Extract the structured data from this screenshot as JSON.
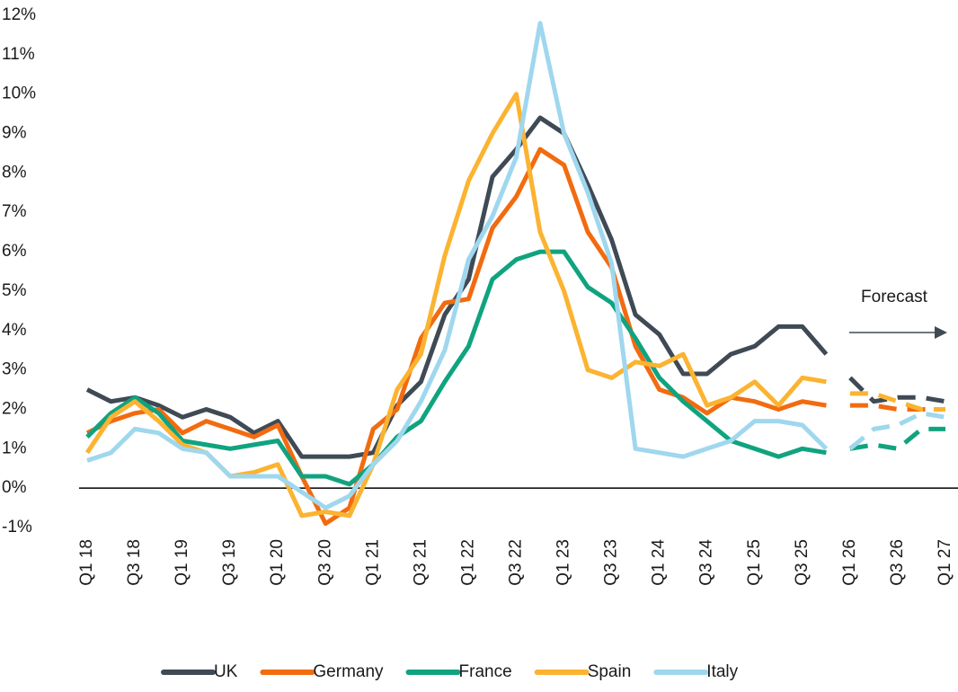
{
  "chart_data": {
    "type": "line",
    "categories": [
      "Q1 18",
      null,
      "Q3 18",
      null,
      "Q1 19",
      null,
      "Q3 19",
      null,
      "Q1 20",
      null,
      "Q3 20",
      null,
      "Q1 21",
      null,
      "Q3 21",
      null,
      "Q1 22",
      null,
      "Q3 22",
      null,
      "Q1 23",
      null,
      "Q3 23",
      null,
      "Q1 24",
      null,
      "Q3 24",
      null,
      "Q1 25",
      null,
      "Q3 25",
      null,
      "Q1 26",
      null,
      "Q3 26",
      null,
      "Q1 27"
    ],
    "forecast_from_index": 32,
    "annotation": "Forecast",
    "ylim": [
      -1,
      12
    ],
    "yticks": [
      {
        "value": -1,
        "label": "-1%"
      },
      {
        "value": 0,
        "label": "0%"
      },
      {
        "value": 1,
        "label": "1%"
      },
      {
        "value": 2,
        "label": "2%"
      },
      {
        "value": 3,
        "label": "3%"
      },
      {
        "value": 4,
        "label": "4%"
      },
      {
        "value": 5,
        "label": "5%"
      },
      {
        "value": 6,
        "label": "6%"
      },
      {
        "value": 7,
        "label": "7%"
      },
      {
        "value": 8,
        "label": "8%"
      },
      {
        "value": 9,
        "label": "9%"
      },
      {
        "value": 10,
        "label": "10%"
      },
      {
        "value": 11,
        "label": "11%"
      },
      {
        "value": 12,
        "label": "12%"
      }
    ],
    "grid": false,
    "legend": "bottom",
    "series": [
      {
        "name": "UK",
        "color": "#3f4a55",
        "values": [
          2.5,
          2.2,
          2.3,
          2.1,
          1.8,
          2.0,
          1.8,
          1.4,
          1.7,
          0.8,
          0.8,
          0.8,
          0.9,
          2.1,
          2.7,
          4.4,
          5.3,
          7.9,
          8.6,
          9.4,
          9.0,
          7.7,
          6.3,
          4.4,
          3.9,
          2.9,
          2.9,
          3.4,
          3.6,
          4.1,
          4.1,
          3.4,
          2.8,
          2.2,
          2.3,
          2.3,
          2.2
        ]
      },
      {
        "name": "Germany",
        "color": "#f26b0f",
        "values": [
          1.4,
          1.7,
          1.9,
          2.0,
          1.4,
          1.7,
          1.5,
          1.3,
          1.6,
          0.3,
          -0.9,
          -0.5,
          1.5,
          2.0,
          3.8,
          4.7,
          4.8,
          6.6,
          7.4,
          8.6,
          8.2,
          6.5,
          5.6,
          3.6,
          2.5,
          2.3,
          1.9,
          2.3,
          2.2,
          2.0,
          2.2,
          2.1,
          2.1,
          2.1,
          2.0,
          2.0,
          2.0
        ]
      },
      {
        "name": "France",
        "color": "#10a37f",
        "values": [
          1.3,
          1.9,
          2.3,
          1.9,
          1.2,
          1.1,
          1.0,
          1.1,
          1.2,
          0.3,
          0.3,
          0.1,
          0.6,
          1.3,
          1.7,
          2.7,
          3.6,
          5.3,
          5.8,
          6.0,
          6.0,
          5.1,
          4.7,
          3.8,
          2.8,
          2.2,
          1.7,
          1.2,
          1.0,
          0.8,
          1.0,
          0.9,
          1.0,
          1.1,
          1.0,
          1.5,
          1.5
        ]
      },
      {
        "name": "Spain",
        "color": "#fbb331",
        "values": [
          0.9,
          1.8,
          2.2,
          1.7,
          1.1,
          0.9,
          0.3,
          0.4,
          0.6,
          -0.7,
          -0.6,
          -0.7,
          0.6,
          2.5,
          3.4,
          5.9,
          7.8,
          9.0,
          10.0,
          6.5,
          5.0,
          3.0,
          2.8,
          3.2,
          3.1,
          3.4,
          2.1,
          2.3,
          2.7,
          2.1,
          2.8,
          2.7,
          2.4,
          2.4,
          2.2,
          2.0,
          2.0
        ]
      },
      {
        "name": "Italy",
        "color": "#9fd7ee",
        "values": [
          0.7,
          0.9,
          1.5,
          1.4,
          1.0,
          0.9,
          0.3,
          0.3,
          0.3,
          -0.1,
          -0.5,
          -0.2,
          0.6,
          1.2,
          2.2,
          3.5,
          5.8,
          6.9,
          8.4,
          11.8,
          9.0,
          7.5,
          5.7,
          1.0,
          0.9,
          0.8,
          1.0,
          1.2,
          1.7,
          1.7,
          1.6,
          1.0,
          1.0,
          1.5,
          1.6,
          1.9,
          1.8
        ]
      }
    ]
  }
}
